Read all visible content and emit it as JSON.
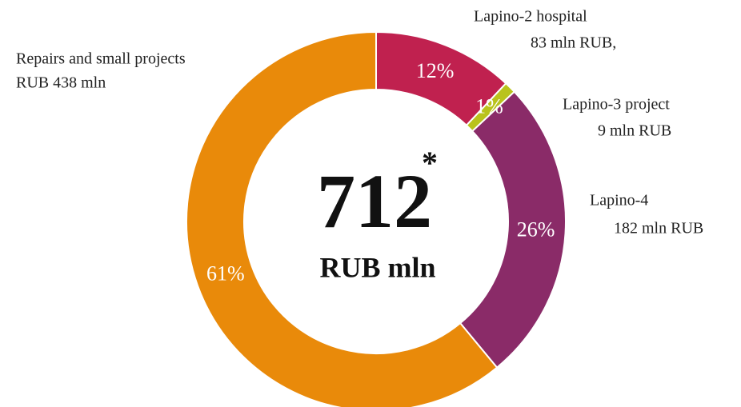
{
  "chart_data": {
    "type": "donut",
    "categories": [
      "Lapino-2 hospital",
      "Lapino-3 project",
      "Lapino-4",
      "Repairs and small projects"
    ],
    "amount_labels": [
      "83 mln RUB,",
      "9 mln RUB",
      "182 mln RUB",
      "RUB 438 mln"
    ],
    "values": [
      12,
      1,
      26,
      61
    ],
    "value_labels": [
      "12%",
      "1%",
      "26%",
      "61%"
    ],
    "colors": [
      "#c0214f",
      "#b9c31c",
      "#8a2b68",
      "#e98a0a"
    ],
    "center_value": "712",
    "center_mark": "*",
    "center_unit": "RUB mln"
  }
}
